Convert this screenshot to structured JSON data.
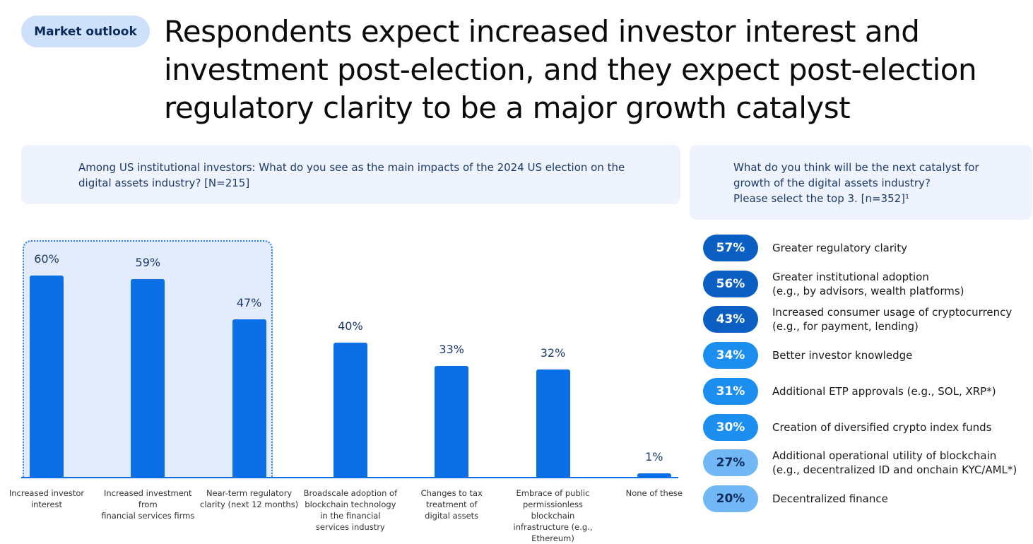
{
  "tag": "Market outlook",
  "title": "Respondents expect increased investor interest and investment post-election, and they expect post-election regulatory clarity to be a major growth catalyst",
  "chart_data": [
    {
      "type": "bar",
      "title": "Among US institutional investors: What do you see as the main impacts of the 2024 US election on the digital assets industry? [N=215]",
      "categories": [
        "Increased investor\ninterest",
        "Increased investment from\nfinancial services firms",
        "Near-term regulatory\nclarity (next 12 months)",
        "Broadscale adoption of\nblockchain technology\nin the financial\nservices industry",
        "Changes to tax\ntreatment of\ndigital assets",
        "Embrace of public\npermissionless blockchain\ninfrastructure (e.g., Ethereum)",
        "None of these"
      ],
      "values": [
        60,
        59,
        47,
        40,
        33,
        32,
        1
      ],
      "value_labels": [
        "60%",
        "59%",
        "47%",
        "40%",
        "33%",
        "32%",
        "1%"
      ],
      "color": "#0b6fe6",
      "ylim": [
        0,
        60
      ]
    },
    {
      "type": "list",
      "title": "What do you think will be the next catalyst for\ngrowth of the digital assets industry?\nPlease select the top 3. [n=352]¹",
      "categories": [
        "Greater regulatory clarity",
        "Greater institutional adoption\n(e.g., by advisors, wealth platforms)",
        "Increased consumer usage of cryptocurrency\n(e.g., for payment, lending)",
        "Better investor knowledge",
        "Additional ETP approvals (e.g., SOL, XRP*)",
        "Creation of diversified crypto index funds",
        "Additional operational utility of blockchain\n(e.g., decentralized ID and onchain KYC/AML*)",
        "Decentralized finance"
      ],
      "values": [
        57,
        56,
        43,
        34,
        31,
        30,
        27,
        20
      ],
      "value_labels": [
        "57%",
        "56%",
        "43%",
        "34%",
        "31%",
        "30%",
        "27%",
        "20%"
      ],
      "colors": [
        "#0b5fc2",
        "#0b5fc2",
        "#0b5fc2",
        "#1c8ef0",
        "#1c8ef0",
        "#1c8ef0",
        "#72b8f6",
        "#72b8f6"
      ]
    }
  ]
}
